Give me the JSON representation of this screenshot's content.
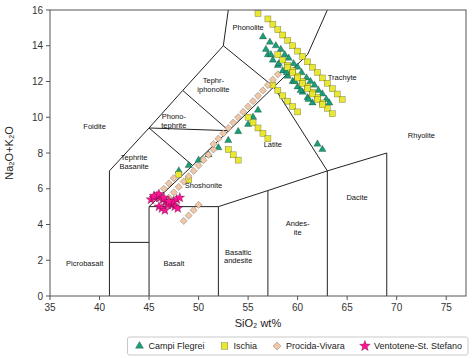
{
  "chart_data": {
    "type": "scatter",
    "xlabel": "SiO₂ wt%",
    "ylabel": "Na₂O+K₂O",
    "xlim": [
      35,
      77
    ],
    "ylim": [
      0,
      16
    ],
    "xticks": [
      35,
      40,
      45,
      50,
      55,
      60,
      65,
      70,
      75
    ],
    "yticks": [
      0,
      2,
      4,
      6,
      8,
      10,
      12,
      14,
      16
    ],
    "grid": false,
    "legend": "lower right",
    "series": [
      {
        "name": "Campi Flegrei",
        "color": "#1a9e78",
        "marker": "triangle",
        "x": [
          56.5,
          57.2,
          57.8,
          58.3,
          58.7,
          59.1,
          59.6,
          60.0,
          60.4,
          60.9,
          61.3,
          61.7,
          62.1,
          62.5,
          62.9,
          63.2,
          57.0,
          57.5,
          58.0,
          58.5,
          59.0,
          59.5,
          60.0,
          60.5,
          61.0,
          61.5,
          56.8,
          57.3,
          58.1,
          58.9,
          59.7,
          60.3,
          61.1,
          48.0,
          49.0,
          50.0,
          51.0,
          52.0,
          53.0,
          54.0,
          55.0,
          55.5,
          56.0,
          62.0,
          62.5
        ],
        "values": [
          14.5,
          14.2,
          14.0,
          13.8,
          13.5,
          13.3,
          13.0,
          12.8,
          12.5,
          12.2,
          12.0,
          11.8,
          11.5,
          11.3,
          11.0,
          10.8,
          13.5,
          13.2,
          12.9,
          12.6,
          12.3,
          12.0,
          11.7,
          11.4,
          11.1,
          10.8,
          13.8,
          13.5,
          13.0,
          12.5,
          12.0,
          11.5,
          11.0,
          7.0,
          7.3,
          7.6,
          7.9,
          8.3,
          8.7,
          9.2,
          9.6,
          10.0,
          10.4,
          8.5,
          8.2
        ]
      },
      {
        "name": "Ischia",
        "color": "#e8e830",
        "marker": "square",
        "x": [
          56.0,
          57.0,
          57.5,
          58.0,
          58.5,
          59.0,
          59.5,
          60.0,
          60.5,
          61.0,
          61.5,
          62.0,
          62.5,
          63.0,
          63.5,
          64.0,
          64.5,
          58.0,
          58.5,
          59.0,
          59.5,
          60.0,
          60.5,
          61.0,
          61.5,
          62.0,
          62.5,
          63.0,
          63.5,
          59.0,
          59.5,
          60.0,
          60.5,
          61.0,
          61.5,
          62.0,
          62.5,
          57.5,
          58.0,
          58.5,
          59.0,
          59.5,
          60.0,
          55.0,
          55.5,
          56.0,
          56.5,
          57.0,
          53.0,
          53.5,
          54.0,
          48.0,
          49.0
        ],
        "values": [
          15.8,
          15.5,
          15.2,
          14.9,
          14.6,
          14.3,
          14.0,
          13.7,
          13.4,
          13.1,
          12.8,
          12.5,
          12.2,
          11.9,
          11.6,
          11.3,
          11.0,
          13.5,
          13.2,
          12.9,
          12.6,
          12.3,
          12.0,
          11.7,
          11.4,
          11.1,
          10.8,
          10.5,
          10.2,
          12.8,
          12.5,
          12.2,
          11.9,
          11.6,
          11.3,
          11.0,
          10.7,
          11.8,
          11.5,
          11.2,
          10.9,
          10.6,
          10.3,
          10.0,
          9.7,
          9.4,
          9.1,
          8.8,
          8.2,
          7.9,
          7.6,
          6.8,
          6.5
        ]
      },
      {
        "name": "Procida-Vivara",
        "color": "#f0c8a8",
        "marker": "diamond",
        "x": [
          47.0,
          47.5,
          48.0,
          48.5,
          49.0,
          49.5,
          50.0,
          50.5,
          51.0,
          51.5,
          51.5,
          52.0,
          52.5,
          53.0,
          53.5,
          54.0,
          54.5,
          55.0,
          55.5,
          56.0,
          56.5,
          57.0,
          57.5,
          58.0,
          48.5,
          49.0,
          49.5,
          50.0,
          46.5,
          47.0,
          47.5
        ],
        "values": [
          5.5,
          5.8,
          6.1,
          6.4,
          6.7,
          7.0,
          7.3,
          7.6,
          7.9,
          8.2,
          8.5,
          8.8,
          9.1,
          9.4,
          9.7,
          10.0,
          10.3,
          10.6,
          10.9,
          11.2,
          11.5,
          11.8,
          12.1,
          12.4,
          4.2,
          4.5,
          4.8,
          5.1,
          6.0,
          6.3,
          6.6
        ]
      },
      {
        "name": "Ventotene-St. Stefano",
        "color": "#ff1493",
        "marker": "star",
        "x": [
          45.2,
          45.5,
          45.8,
          46.1,
          46.4,
          46.7,
          47.0,
          47.3,
          47.6,
          47.9,
          46.0,
          46.3,
          46.6,
          46.9,
          47.2,
          47.5,
          47.8,
          48.1,
          45.5,
          46.0,
          46.5,
          47.0
        ],
        "values": [
          5.4,
          5.5,
          5.6,
          5.5,
          5.4,
          5.3,
          5.2,
          5.1,
          5.0,
          4.9,
          5.0,
          4.9,
          4.8,
          5.1,
          5.2,
          5.3,
          5.4,
          5.5,
          5.6,
          5.7,
          5.5,
          5.3
        ]
      }
    ],
    "boundaries": [
      {
        "x": [
          41,
          41
        ],
        "y": [
          0,
          3
        ]
      },
      {
        "x": [
          41,
          45
        ],
        "y": [
          3,
          3
        ]
      },
      {
        "x": [
          45,
          45
        ],
        "y": [
          0,
          5
        ]
      },
      {
        "x": [
          45,
          52
        ],
        "y": [
          5,
          5
        ]
      },
      {
        "x": [
          52,
          52
        ],
        "y": [
          5,
          0
        ]
      },
      {
        "x": [
          57,
          57
        ],
        "y": [
          0,
          5.9
        ]
      },
      {
        "x": [
          63,
          63
        ],
        "y": [
          0,
          7
        ]
      },
      {
        "x": [
          69,
          69
        ],
        "y": [
          0,
          8
        ]
      },
      {
        "x": [
          45,
          49.4
        ],
        "y": [
          5,
          7.3
        ]
      },
      {
        "x": [
          49.4,
          53.05
        ],
        "y": [
          7.3,
          9.25
        ]
      },
      {
        "x": [
          53.05,
          57.6
        ],
        "y": [
          9.25,
          11.7
        ]
      },
      {
        "x": [
          57.6,
          61
        ],
        "y": [
          11.7,
          13.5
        ]
      },
      {
        "x": [
          61,
          63
        ],
        "y": [
          13.5,
          16
        ]
      },
      {
        "x": [
          41,
          41
        ],
        "y": [
          3,
          7
        ]
      },
      {
        "x": [
          41,
          45
        ],
        "y": [
          7,
          9.4
        ]
      },
      {
        "x": [
          45,
          49.4
        ],
        "y": [
          9.4,
          7.3
        ]
      },
      {
        "x": [
          45,
          53.05
        ],
        "y": [
          9.4,
          9.25
        ]
      },
      {
        "x": [
          48.4,
          45
        ],
        "y": [
          11.5,
          9.4
        ]
      },
      {
        "x": [
          48.4,
          53.05
        ],
        "y": [
          11.5,
          9.25
        ]
      },
      {
        "x": [
          48.4,
          52.5
        ],
        "y": [
          11.5,
          14
        ]
      },
      {
        "x": [
          52.5,
          57.6
        ],
        "y": [
          14,
          11.7
        ]
      },
      {
        "x": [
          52.5,
          53
        ],
        "y": [
          14,
          16
        ]
      },
      {
        "x": [
          57.6,
          63
        ],
        "y": [
          11.7,
          7
        ]
      },
      {
        "x": [
          63,
          69
        ],
        "y": [
          7,
          8
        ]
      },
      {
        "x": [
          52,
          57
        ],
        "y": [
          5,
          5.9
        ]
      },
      {
        "x": [
          57,
          63
        ],
        "y": [
          5.9,
          7
        ]
      }
    ],
    "annotations": [
      {
        "text": "Picrobasalt",
        "x": 38.5,
        "y": 1.8
      },
      {
        "text": "Basalt",
        "x": 47.5,
        "y": 1.8
      },
      {
        "text": "Basaltic\nandesite",
        "x": 54.0,
        "y": 2.2
      },
      {
        "text": "Andes-\nite",
        "x": 60.0,
        "y": 3.8
      },
      {
        "text": "Dacite",
        "x": 66.0,
        "y": 5.5
      },
      {
        "text": "Rhyolite",
        "x": 72.5,
        "y": 9.0
      },
      {
        "text": "Tephrite\nBasanite",
        "x": 43.5,
        "y": 7.5
      },
      {
        "text": "Phono-\ntephrite",
        "x": 47.5,
        "y": 9.8
      },
      {
        "text": "Tephr-\niphonolite",
        "x": 51.5,
        "y": 11.8
      },
      {
        "text": "Phonolite",
        "x": 55.0,
        "y": 15.0
      },
      {
        "text": "Foidite",
        "x": 39.5,
        "y": 9.5
      },
      {
        "text": "Shoshonite",
        "x": 50.5,
        "y": 6.2
      },
      {
        "text": "Latite",
        "x": 57.5,
        "y": 8.5
      },
      {
        "text": "Trachyte",
        "x": 64.5,
        "y": 12.2
      }
    ]
  }
}
